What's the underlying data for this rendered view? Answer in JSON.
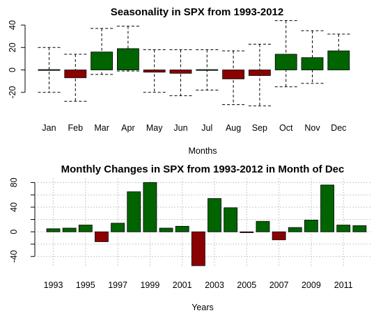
{
  "chart_data": [
    {
      "type": "bar",
      "title": "Seasonality in SPX from 1993-2012",
      "xlabel": "Months",
      "ylabel": "",
      "ylim": [
        -40,
        45
      ],
      "yticks": [
        -20,
        0,
        20,
        40
      ],
      "categories": [
        "Jan",
        "Feb",
        "Mar",
        "Apr",
        "May",
        "Jun",
        "Jul",
        "Aug",
        "Sep",
        "Oct",
        "Nov",
        "Dec"
      ],
      "values": [
        0.3,
        -7,
        16,
        19,
        -2,
        -3,
        0.3,
        -8,
        -5,
        14,
        11,
        17
      ],
      "whisker_low": [
        -20,
        -28,
        -4,
        -1,
        -20,
        -23,
        -18,
        -31,
        -32,
        -15,
        -12,
        1
      ],
      "whisker_high": [
        20,
        14,
        37,
        39,
        18,
        18,
        18,
        17,
        23,
        44,
        35,
        32
      ],
      "colors": {
        "positive": "#006400",
        "negative": "#8b0000",
        "whisker": "#000000"
      }
    },
    {
      "type": "bar",
      "title": "Monthly Changes in SPX from 1993-2012 in Month of Dec",
      "xlabel": "Years",
      "ylabel": "",
      "ylim": [
        -55,
        85
      ],
      "yticks": [
        -40,
        -20,
        0,
        20,
        40,
        60,
        80
      ],
      "grid": true,
      "x": [
        1993,
        1994,
        1995,
        1996,
        1997,
        1998,
        1999,
        2000,
        2001,
        2002,
        2003,
        2004,
        2005,
        2006,
        2007,
        2008,
        2009,
        2010,
        2011,
        2012
      ],
      "xtick_labels": [
        "1993",
        "1995",
        "1997",
        "1999",
        "2001",
        "2003",
        "2005",
        "2007",
        "2009",
        "2011"
      ],
      "values": [
        5,
        6,
        11,
        -16,
        14,
        65,
        80,
        6,
        9,
        -55,
        54,
        39,
        -1,
        17,
        -13,
        7,
        19,
        76,
        11,
        10
      ],
      "colors": {
        "positive": "#006400",
        "negative": "#8b0000"
      }
    }
  ]
}
